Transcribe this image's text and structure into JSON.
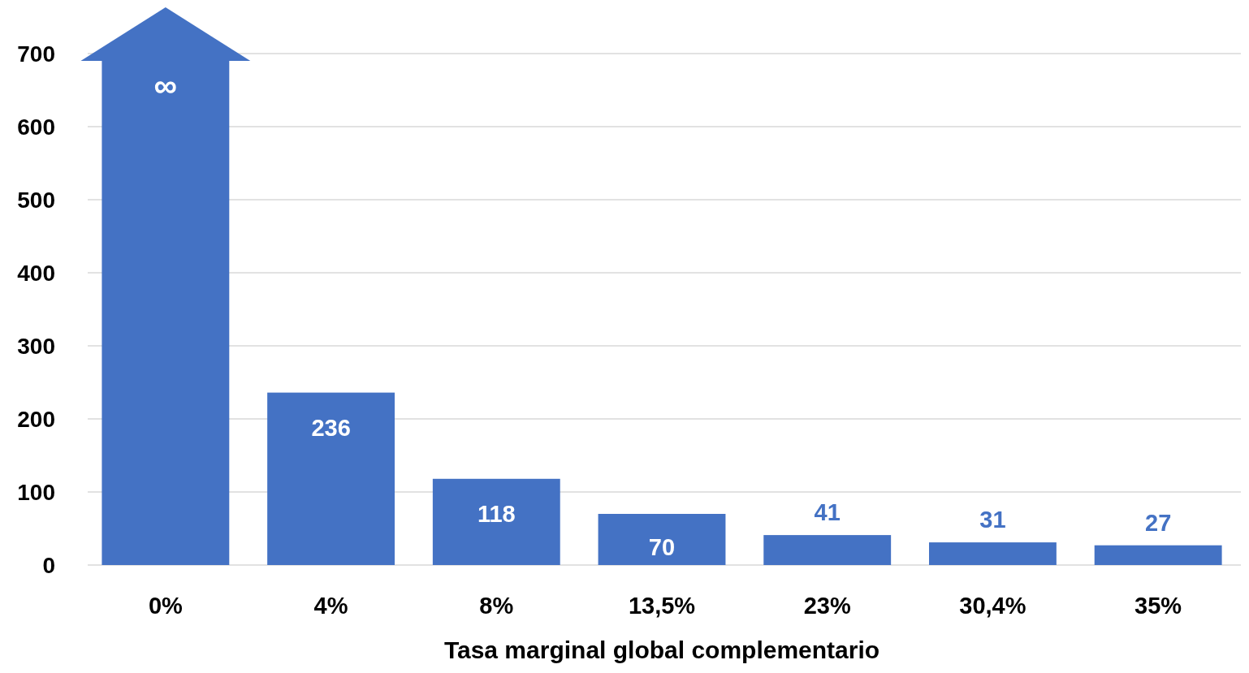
{
  "chart_data": {
    "type": "bar",
    "xlabel": "Tasa marginal global complementario",
    "categories": [
      "0%",
      "4%",
      "8%",
      "13,5%",
      "23%",
      "30,4%",
      "35%"
    ],
    "values": [
      690,
      236,
      118,
      70,
      41,
      31,
      27
    ],
    "value_labels": [
      "∞",
      "236",
      "118",
      "70",
      "41",
      "31",
      "27"
    ],
    "color": "#4472c4",
    "ylim": [
      0,
      700
    ],
    "yticks": [
      0,
      100,
      200,
      300,
      400,
      500,
      600,
      700
    ],
    "grid": "y"
  }
}
